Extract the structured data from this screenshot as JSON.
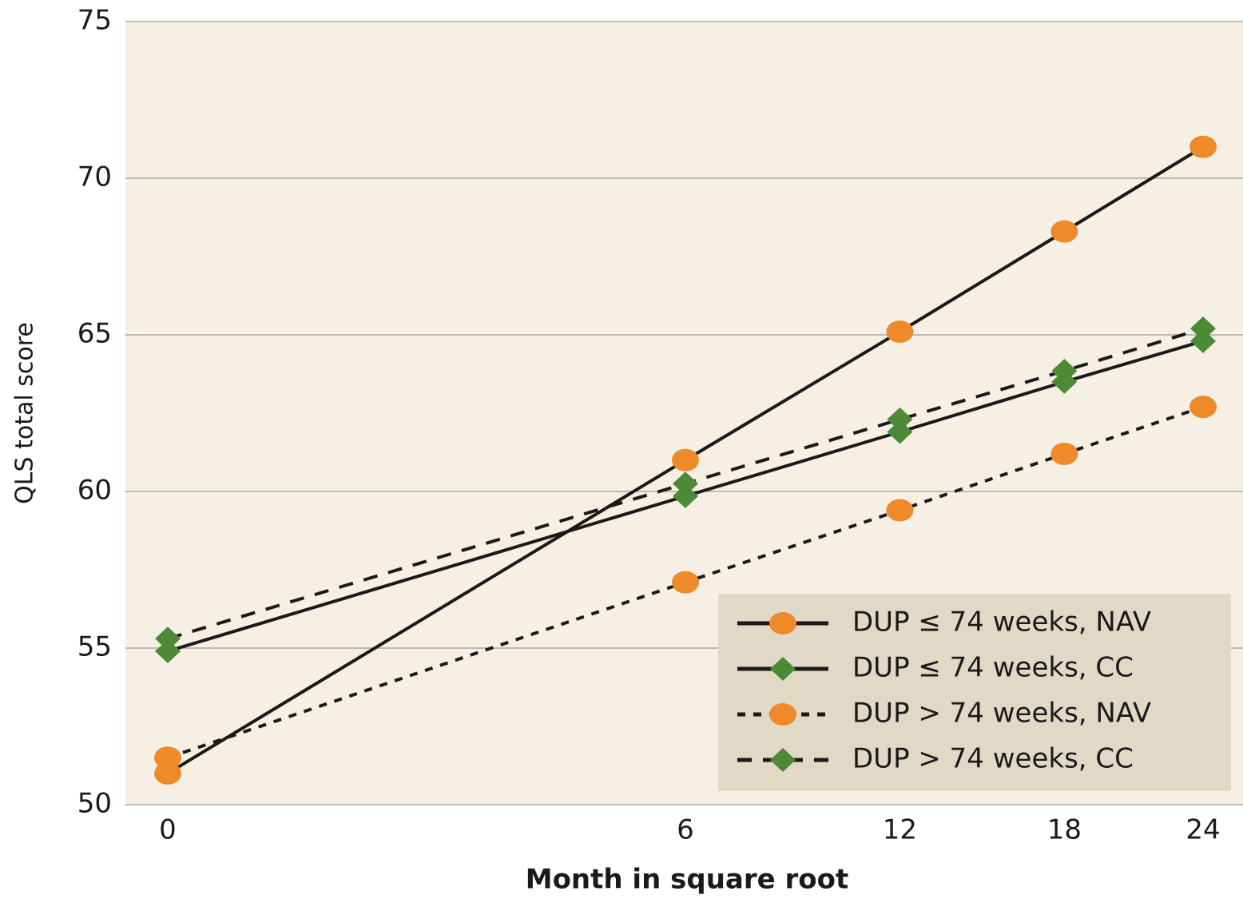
{
  "chart_data": {
    "type": "line",
    "x_label": "Month in square root",
    "y_label": "QLS total score",
    "x": [
      0,
      6,
      12,
      18,
      24
    ],
    "x_scale": "sqrt",
    "xlim": [
      0,
      24
    ],
    "xticks": [
      0,
      6,
      12,
      18,
      24
    ],
    "ylim": [
      50,
      75
    ],
    "yticks": [
      50,
      55,
      60,
      65,
      70,
      75
    ],
    "grid": true,
    "legend_position": "lower right",
    "series": [
      {
        "name": "DUP ≤ 74 weeks, NAV",
        "color": "#ee8a2a",
        "marker": "circle",
        "line_style": "solid",
        "values": [
          51.0,
          61.0,
          65.1,
          68.3,
          71.0
        ]
      },
      {
        "name": "DUP ≤ 74 weeks, CC",
        "color": "#4c8a35",
        "marker": "diamond",
        "line_style": "solid",
        "values": [
          54.9,
          59.85,
          61.9,
          63.5,
          64.8
        ]
      },
      {
        "name": "DUP > 74 weeks, NAV",
        "color": "#ee8a2a",
        "marker": "circle",
        "line_style": "dotted",
        "values": [
          51.5,
          57.1,
          59.4,
          61.2,
          62.7
        ]
      },
      {
        "name": "DUP > 74 weeks, CC",
        "color": "#4c8a35",
        "marker": "diamond",
        "line_style": "dashed",
        "values": [
          55.3,
          60.25,
          62.3,
          63.85,
          65.2
        ]
      }
    ]
  }
}
